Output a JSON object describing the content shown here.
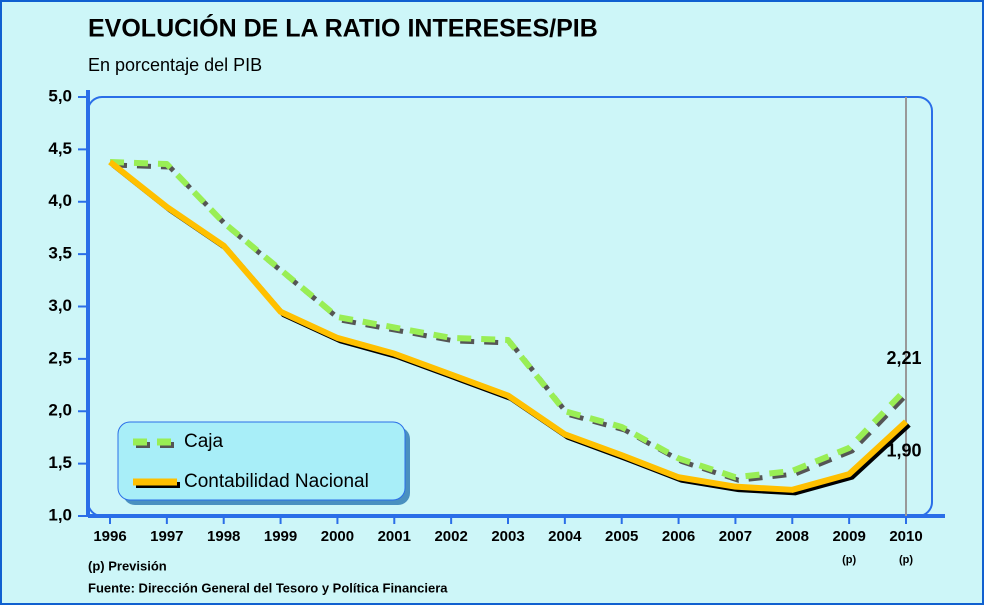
{
  "chart_data": {
    "type": "line",
    "title": "EVOLUCIÓN DE LA RATIO INTERESES/PIB",
    "subtitle": "En porcentaje del PIB",
    "categories": [
      "1996",
      "1997",
      "1998",
      "1999",
      "2000",
      "2001",
      "2002",
      "2003",
      "2004",
      "2005",
      "2006",
      "2007",
      "2008",
      "2009",
      "2010"
    ],
    "category_notes": [
      null,
      null,
      null,
      null,
      null,
      null,
      null,
      null,
      null,
      null,
      null,
      null,
      null,
      "(p)",
      "(p)"
    ],
    "series": [
      {
        "name": "Caja",
        "color": "#99ee55",
        "dashed": true,
        "values": [
          4.38,
          4.36,
          3.8,
          3.35,
          2.9,
          2.8,
          2.7,
          2.68,
          2.0,
          1.85,
          1.55,
          1.37,
          1.43,
          1.65,
          2.21
        ],
        "value_labels": [
          null,
          null,
          null,
          null,
          null,
          null,
          null,
          null,
          null,
          null,
          null,
          null,
          null,
          null,
          "2,21"
        ]
      },
      {
        "name": "Contabilidad Nacional",
        "color": "#ffc000",
        "dashed": false,
        "values": [
          4.38,
          3.95,
          3.58,
          2.95,
          2.7,
          2.55,
          2.35,
          2.15,
          1.78,
          1.58,
          1.37,
          1.28,
          1.25,
          1.4,
          1.9
        ],
        "value_labels": [
          null,
          null,
          null,
          null,
          null,
          null,
          null,
          null,
          null,
          null,
          null,
          null,
          null,
          null,
          "1,90"
        ]
      }
    ],
    "ylim": [
      1,
      5
    ],
    "yticks": [
      {
        "value": 1,
        "label": "1,0"
      },
      {
        "value": 1.5,
        "label": "1,5"
      },
      {
        "value": 2,
        "label": "2,0"
      },
      {
        "value": 2.5,
        "label": "2,5"
      },
      {
        "value": 3,
        "label": "3,0"
      },
      {
        "value": 3.5,
        "label": "3,5"
      },
      {
        "value": 4,
        "label": "4,0"
      },
      {
        "value": 4.5,
        "label": "4,5"
      },
      {
        "value": 5,
        "label": "5,0"
      }
    ],
    "legend": "lower left",
    "notes": [
      "(p) Previsión",
      "Fuente: Dirección General del Tesoro y Política Financiera"
    ]
  }
}
